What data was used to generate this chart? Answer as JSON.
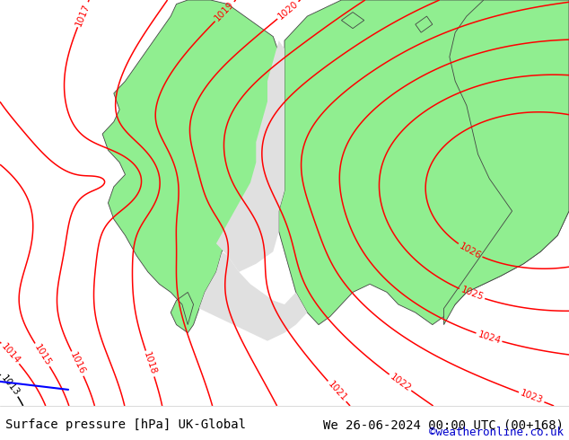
{
  "title_left": "Surface pressure [hPa] UK-Global",
  "title_right": "We 26-06-2024 00:00 UTC (00+168)",
  "copyright": "©weatheronline.co.uk",
  "bg_color": "#e0e0e0",
  "land_color": "#90ee90",
  "sea_color": "#e0e0e0",
  "isobar_color": "#ff0000",
  "isobar_color_black": "#000000",
  "text_color": "#000000",
  "copyright_color": "#0000cc",
  "blue_front_color": "#0000ff",
  "bottom_bar_color": "#ffffff",
  "bottom_bar_height": 38,
  "fig_width": 6.34,
  "fig_height": 4.9,
  "dpi": 100,
  "font_size_bottom": 10,
  "font_size_copyright": 9,
  "isobar_lw": 1.1,
  "label_fontsize": 7.5
}
